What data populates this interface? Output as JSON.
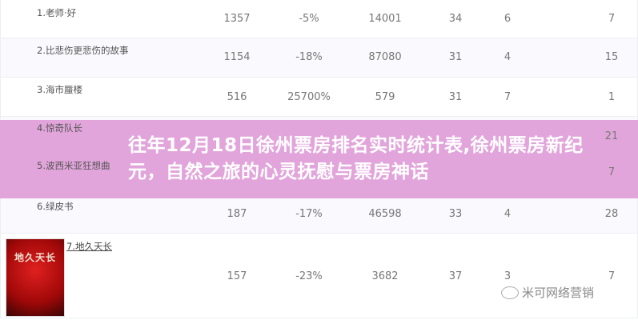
{
  "table": {
    "rows": [
      {
        "name": "1.老师·好",
        "cols": [
          "1357",
          "-5%",
          "14001",
          "34",
          "6",
          "7"
        ]
      },
      {
        "name": "2.比悲伤更悲伤的故事",
        "cols": [
          "1154",
          "-18%",
          "87080",
          "31",
          "4",
          "15"
        ]
      },
      {
        "name": "3.海市蜃楼",
        "cols": [
          "516",
          "25700%",
          "579",
          "31",
          "7",
          "1"
        ]
      },
      {
        "name": "4.惊奇队长",
        "cols": [
          "",
          "",
          "",
          "",
          "",
          "21"
        ]
      },
      {
        "name": "5.波西米亚狂想曲",
        "cols": [
          "",
          "",
          "",
          "",
          "",
          "7"
        ]
      },
      {
        "name": "6.绿皮书",
        "cols": [
          "187",
          "-17%",
          "46598",
          "33",
          "4",
          "28"
        ]
      },
      {
        "name": "7.地久天长",
        "cols": [
          "157",
          "-23%",
          "3682",
          "37",
          "3",
          "7"
        ],
        "poster": "地久天长"
      }
    ]
  },
  "headline": "往年12月18日徐州票房排名实时统计表,徐州票房新纪元，自然之旅的心灵抚慰与票房神话",
  "watermark": {
    "text": "米可网络营销",
    "icon": "wechat-icon"
  },
  "colors": {
    "overlay": "#e09ed8",
    "row_alt": "#faf9fd"
  }
}
